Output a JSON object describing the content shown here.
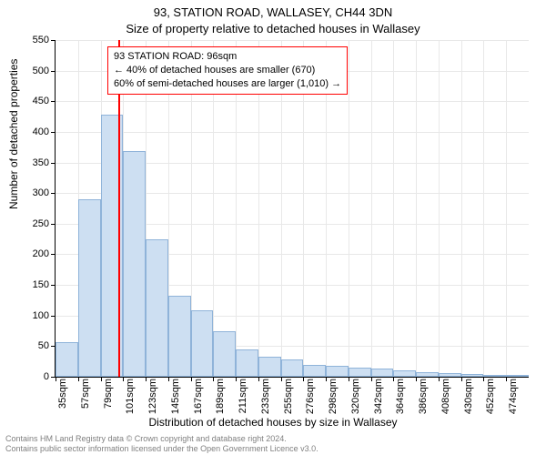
{
  "header": {
    "line1": "93, STATION ROAD, WALLASEY, CH44 3DN",
    "line2": "Size of property relative to detached houses in Wallasey"
  },
  "chart": {
    "type": "histogram",
    "y_axis_label": "Number of detached properties",
    "x_axis_label": "Distribution of detached houses by size in Wallasey",
    "ylim": [
      0,
      550
    ],
    "ytick_step": 50,
    "yticks": [
      0,
      50,
      100,
      150,
      200,
      250,
      300,
      350,
      400,
      450,
      500,
      550
    ],
    "bin_width_sqm": 22,
    "x_start_sqm": 35,
    "x_end_sqm": 485,
    "xticks_sqm": [
      35,
      57,
      79,
      101,
      123,
      145,
      167,
      189,
      211,
      233,
      255,
      276,
      298,
      320,
      342,
      364,
      386,
      408,
      430,
      452,
      474
    ],
    "bars": [
      56,
      290,
      428,
      368,
      225,
      133,
      108,
      75,
      45,
      32,
      28,
      20,
      18,
      15,
      13,
      10,
      8,
      6,
      4,
      3,
      2
    ],
    "bar_fill_color": "#cddff2",
    "bar_border_color": "#8fb3d9",
    "grid_color": "#e8e8e8",
    "background_color": "#ffffff",
    "axis_color": "#000000",
    "marker": {
      "sqm": 96,
      "color": "#ff0000"
    },
    "annotation": {
      "border_color": "#ff0000",
      "lines": [
        "93 STATION ROAD: 96sqm",
        "← 40% of detached houses are smaller (670)",
        "60% of semi-detached houses are larger (1,010) →"
      ]
    },
    "tick_fontsize": 11,
    "label_fontsize": 12,
    "title_fontsize": 13
  },
  "footer": {
    "line1": "Contains HM Land Registry data © Crown copyright and database right 2024.",
    "line2": "Contains public sector information licensed under the Open Government Licence v3.0."
  }
}
